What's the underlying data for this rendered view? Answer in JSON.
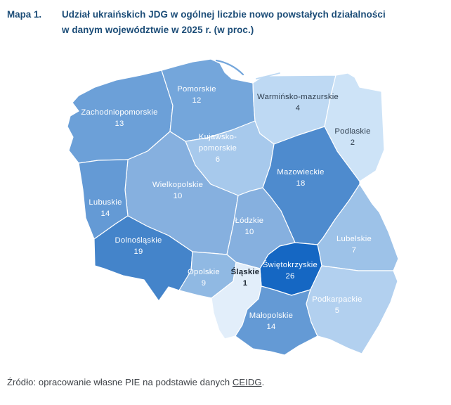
{
  "figure": {
    "label": "Mapa 1.",
    "title_line1": "Udział ukraińskich JDG w ogólnej liczbie nowo powstałych działalności",
    "title_line2": "w danym województwie w 2025 r. (w proc.)",
    "source_prefix": "Źródło: opracowanie własne PIE na podstawie danych ",
    "source_link": "CEIDG",
    "source_suffix": "."
  },
  "colors": {
    "title_text": "#1b4c77",
    "source_text": "#3e4247",
    "region_border": "#ffffff",
    "label_light": "#ffffff",
    "label_dark": "#2f3e4e",
    "label_dark_bold": "#18222e"
  },
  "chart_data": {
    "type": "choropleth",
    "title": "Udział ukraińskich JDG w ogólnej liczbie nowo powstałych działalności w danym województwie w 2025 r. (w proc.)",
    "unit": "proc.",
    "value_range": [
      1,
      26
    ],
    "legend": "none",
    "color_scale": {
      "min_color": "#e2eefa",
      "max_color": "#1567c3"
    },
    "source": "opracowanie własne PIE na podstawie danych CEIDG",
    "regions": [
      {
        "id": "zachodniopomorskie",
        "name": "Zachodniopomorskie",
        "value": 13,
        "color": "#6ca0d8",
        "label_dark": false
      },
      {
        "id": "pomorskie",
        "name": "Pomorskie",
        "value": 12,
        "color": "#74a6db",
        "label_dark": false
      },
      {
        "id": "warminsko-mazurskie",
        "name": "Warmińsko-mazurskie",
        "value": 4,
        "color": "#bed9f3",
        "label_dark": true
      },
      {
        "id": "podlaskie",
        "name": "Podlaskie",
        "value": 2,
        "color": "#cde3f7",
        "label_dark": true
      },
      {
        "id": "kujawsko-pomorskie",
        "name": "Kujawsko-pomorskie",
        "label_lines": [
          "Kujawsko-",
          "pomorskie"
        ],
        "value": 6,
        "color": "#a7c9ec",
        "label_dark": false
      },
      {
        "id": "mazowieckie",
        "name": "Mazowieckie",
        "value": 18,
        "color": "#4e8bce",
        "label_dark": false
      },
      {
        "id": "wielkopolskie",
        "name": "Wielkopolskie",
        "value": 10,
        "color": "#86b0df",
        "label_dark": false
      },
      {
        "id": "lubuskie",
        "name": "Lubuskie",
        "value": 14,
        "color": "#649ad5",
        "label_dark": false
      },
      {
        "id": "lodzkie",
        "name": "Łódzkie",
        "value": 10,
        "color": "#86b0df",
        "label_dark": false
      },
      {
        "id": "lubelskie",
        "name": "Lubelskie",
        "value": 7,
        "color": "#9dc2e8",
        "label_dark": false
      },
      {
        "id": "dolnoslaskie",
        "name": "Dolnośląskie",
        "value": 19,
        "color": "#4484ca",
        "label_dark": false
      },
      {
        "id": "swietokrzyskie",
        "name": "Świętokrzyskie",
        "value": 26,
        "color": "#1567c3",
        "label_dark": false
      },
      {
        "id": "opolskie",
        "name": "Opolskie",
        "value": 9,
        "color": "#90b9e3",
        "label_dark": false
      },
      {
        "id": "slaskie",
        "name": "Śląskie",
        "value": 1,
        "color": "#e2eefa",
        "label_dark": true,
        "label_bold": true
      },
      {
        "id": "malopolskie",
        "name": "Małopolskie",
        "value": 14,
        "color": "#649ad5",
        "label_dark": false
      },
      {
        "id": "podkarpackie",
        "name": "Podkarpackie",
        "value": 5,
        "color": "#b2d0ef",
        "label_dark": false
      }
    ]
  }
}
